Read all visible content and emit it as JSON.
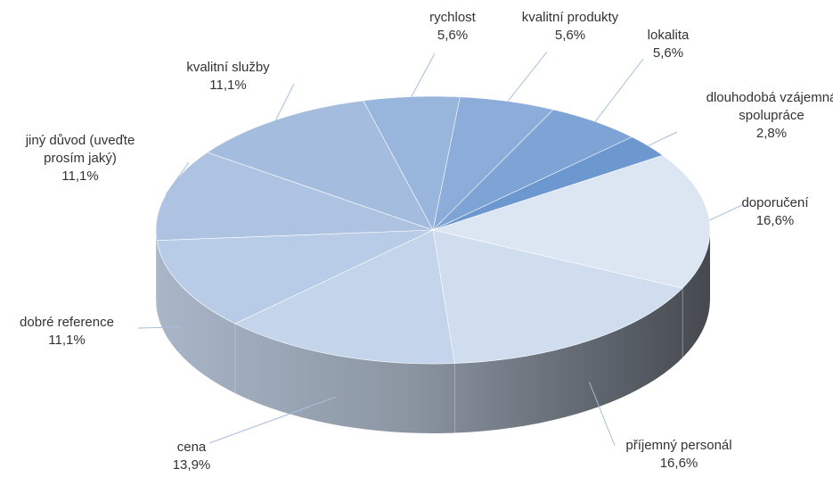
{
  "chart_data": {
    "type": "pie3d",
    "categories": [
      "doporučení",
      "příjemný personál",
      "cena",
      "dobré reference",
      "jiný důvod (uveďte prosím jaký)",
      "kvalitní služby",
      "rychlost",
      "kvalitní produkty",
      "lokalita",
      "dlouhodobá vzájemná spolupráce"
    ],
    "values": [
      16.6,
      16.6,
      13.9,
      11.1,
      11.1,
      11.1,
      5.6,
      5.6,
      5.6,
      2.8
    ],
    "value_labels": [
      "16,6%",
      "16,6%",
      "13,9%",
      "11,1%",
      "11,1%",
      "11,1%",
      "5,6%",
      "5,6%",
      "5,6%",
      "2,8%"
    ],
    "colors": [
      "#dce6f2",
      "#d0ddee",
      "#c3d4eb",
      "#b9cce7",
      "#aec2e1",
      "#a4bddf",
      "#98b5dc",
      "#8cacd9",
      "#7ea3d5",
      "#6c97cf"
    ]
  }
}
